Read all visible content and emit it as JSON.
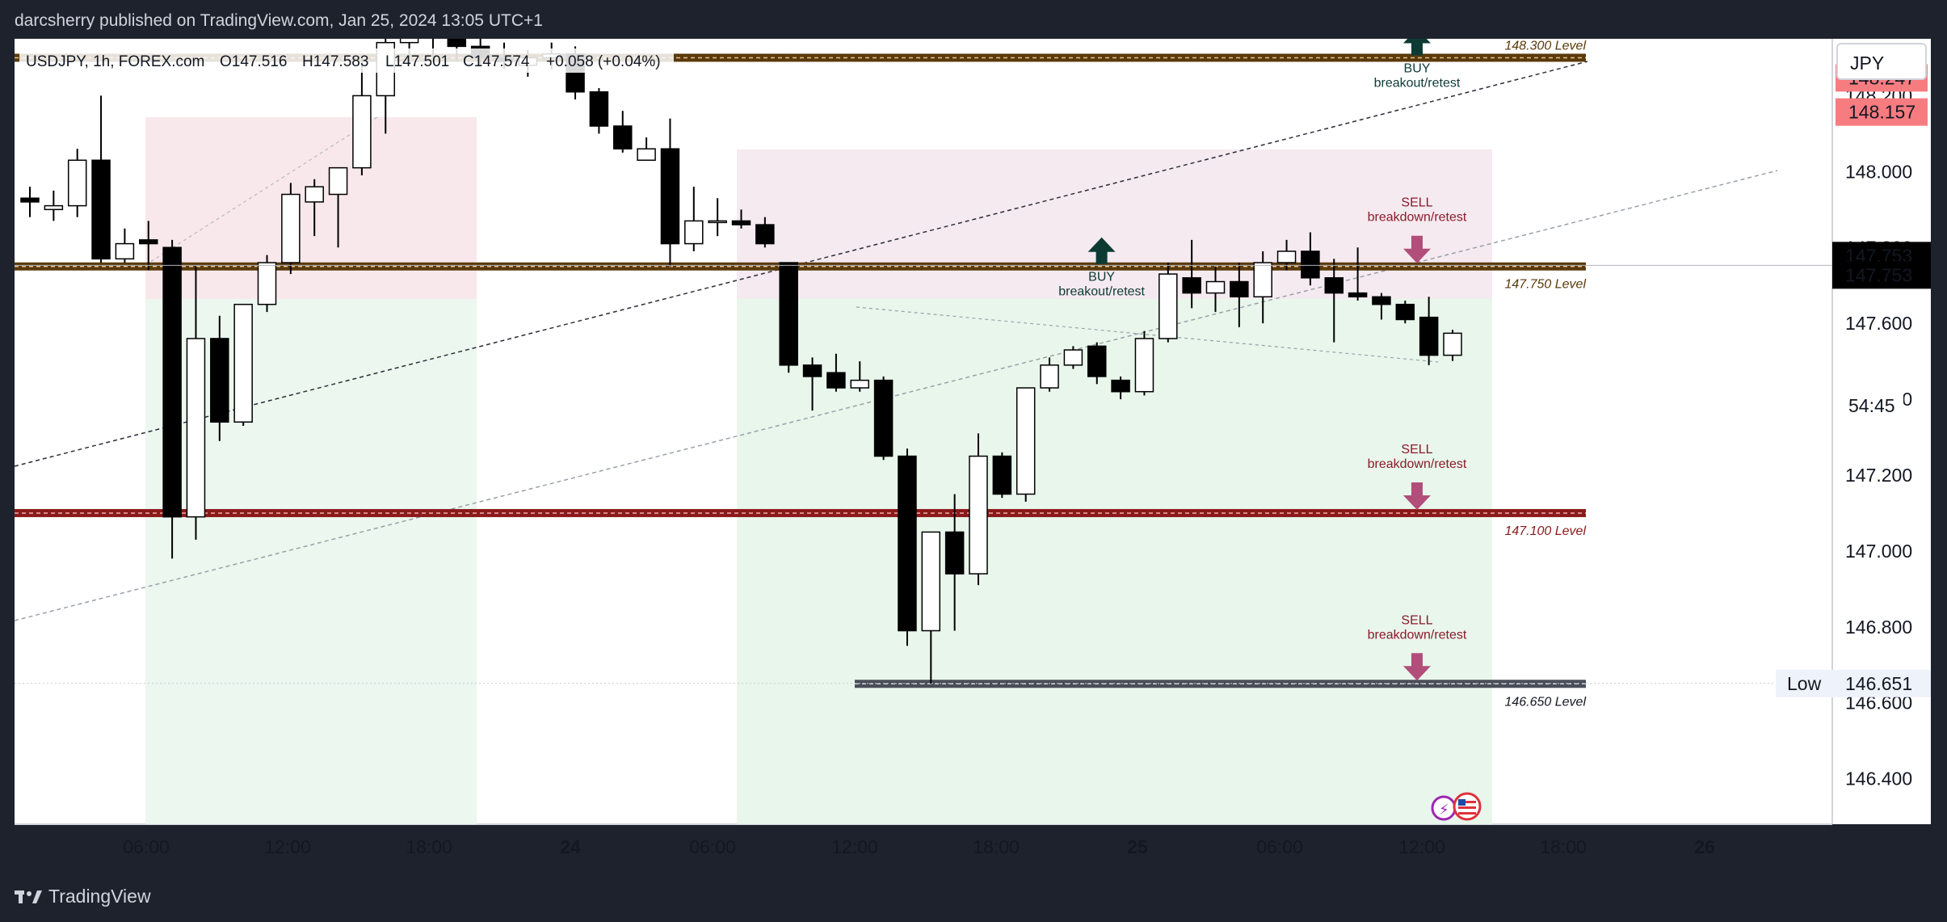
{
  "header": {
    "publisher_line": "darcsherry published on TradingView.com, Jan 25, 2024 13:05 UTC+1"
  },
  "footer": {
    "brand": "TradingView"
  },
  "chart_info": {
    "symbol": "USDJPY, 1h, FOREX.com",
    "open": "O147.516",
    "high": "H147.583",
    "low": "L147.501",
    "close": "C147.574",
    "change": "+0.058 (+0.04%)"
  },
  "currency_button": "JPY",
  "colors": {
    "bull_body": "#ffffff",
    "bear_body": "#000000",
    "zone_red": "#f7e6ea",
    "zone_green": "#e7f5ea",
    "level_brown": "#5a3a0c",
    "level_red": "#8b1a1a",
    "level_gray": "#4a4e58",
    "buy_arrow": "#0d3b34",
    "sell_arrow": "#b14e7a"
  },
  "chart_data": {
    "type": "candlestick",
    "title": "USDJPY, 1h, FOREX.com",
    "ylim": [
      146.28,
      148.35
    ],
    "y_ticks": [
      "146.400",
      "146.600",
      "146.800",
      "147.000",
      "147.200",
      "147.400",
      "147.600",
      "147.800",
      "148.000",
      "148.200"
    ],
    "x_ticks": [
      "06:00",
      "12:00",
      "18:00",
      "24",
      "06:00",
      "12:00",
      "18:00",
      "25",
      "06:00",
      "12:00",
      "18:00",
      "26"
    ],
    "price_labels": [
      {
        "text": "148.247",
        "value": 148.247,
        "style": "alert"
      },
      {
        "text": "148.157",
        "value": 148.157,
        "style": "alert"
      },
      {
        "text": "147.753",
        "value": 147.753,
        "style": "last"
      },
      {
        "text": "147.753",
        "value": 147.753,
        "style": "last"
      },
      {
        "text": "54:45",
        "value": 147.574,
        "style": "countdown"
      },
      {
        "text": "146.651",
        "value": 146.651,
        "style": "low",
        "tag": "Low"
      }
    ],
    "candles": [
      {
        "t": "Jan 23 01:00",
        "o": 147.93,
        "h": 147.96,
        "l": 147.88,
        "c": 147.92
      },
      {
        "t": "Jan 23 02:00",
        "o": 147.9,
        "h": 147.95,
        "l": 147.87,
        "c": 147.91
      },
      {
        "t": "Jan 23 03:00",
        "o": 147.91,
        "h": 148.06,
        "l": 147.88,
        "c": 148.03
      },
      {
        "t": "Jan 23 04:00",
        "o": 148.03,
        "h": 148.2,
        "l": 147.76,
        "c": 147.77
      },
      {
        "t": "Jan 23 05:00",
        "o": 147.77,
        "h": 147.85,
        "l": 147.76,
        "c": 147.81
      },
      {
        "t": "Jan 23 06:00",
        "o": 147.82,
        "h": 147.87,
        "l": 147.74,
        "c": 147.81
      },
      {
        "t": "Jan 23 07:00",
        "o": 147.8,
        "h": 147.82,
        "l": 146.98,
        "c": 147.09
      },
      {
        "t": "Jan 23 08:00",
        "o": 147.09,
        "h": 147.75,
        "l": 147.03,
        "c": 147.56
      },
      {
        "t": "Jan 23 09:00",
        "o": 147.56,
        "h": 147.62,
        "l": 147.29,
        "c": 147.34
      },
      {
        "t": "Jan 23 10:00",
        "o": 147.34,
        "h": 147.65,
        "l": 147.33,
        "c": 147.65
      },
      {
        "t": "Jan 23 11:00",
        "o": 147.65,
        "h": 147.78,
        "l": 147.63,
        "c": 147.76
      },
      {
        "t": "Jan 23 12:00",
        "o": 147.76,
        "h": 147.97,
        "l": 147.73,
        "c": 147.94
      },
      {
        "t": "Jan 23 13:00",
        "o": 147.92,
        "h": 147.98,
        "l": 147.83,
        "c": 147.96
      },
      {
        "t": "Jan 23 14:00",
        "o": 147.94,
        "h": 148.0,
        "l": 147.8,
        "c": 148.01
      },
      {
        "t": "Jan 23 15:00",
        "o": 148.01,
        "h": 148.3,
        "l": 147.99,
        "c": 148.2
      },
      {
        "t": "Jan 23 16:00",
        "o": 148.2,
        "h": 148.37,
        "l": 148.1,
        "c": 148.34
      },
      {
        "t": "Jan 23 17:00",
        "o": 148.34,
        "h": 148.38,
        "l": 148.28,
        "c": 148.36
      },
      {
        "t": "Jan 23 18:00",
        "o": 148.36,
        "h": 148.4,
        "l": 148.3,
        "c": 148.38
      },
      {
        "t": "Jan 23 19:00",
        "o": 148.38,
        "h": 148.41,
        "l": 148.29,
        "c": 148.33
      },
      {
        "t": "Jan 23 20:00",
        "o": 148.33,
        "h": 148.36,
        "l": 148.28,
        "c": 148.3
      },
      {
        "t": "Jan 23 21:00",
        "o": 148.3,
        "h": 148.34,
        "l": 148.27,
        "c": 148.29
      },
      {
        "t": "Jan 23 22:00",
        "o": 148.28,
        "h": 148.32,
        "l": 148.25,
        "c": 148.3
      },
      {
        "t": "Jan 23 23:00",
        "o": 148.3,
        "h": 148.34,
        "l": 148.27,
        "c": 148.31
      },
      {
        "t": "Jan 24 00:00",
        "o": 148.31,
        "h": 148.33,
        "l": 148.19,
        "c": 148.21
      },
      {
        "t": "Jan 24 01:00",
        "o": 148.21,
        "h": 148.22,
        "l": 148.1,
        "c": 148.12
      },
      {
        "t": "Jan 24 02:00",
        "o": 148.12,
        "h": 148.16,
        "l": 148.05,
        "c": 148.06
      },
      {
        "t": "Jan 24 03:00",
        "o": 148.03,
        "h": 148.09,
        "l": 148.03,
        "c": 148.06
      },
      {
        "t": "Jan 24 04:00",
        "o": 148.06,
        "h": 148.14,
        "l": 147.75,
        "c": 147.81
      },
      {
        "t": "Jan 24 05:00",
        "o": 147.81,
        "h": 147.96,
        "l": 147.79,
        "c": 147.87
      },
      {
        "t": "Jan 24 06:00",
        "o": 147.87,
        "h": 147.93,
        "l": 147.83,
        "c": 147.87
      },
      {
        "t": "Jan 24 07:00",
        "o": 147.87,
        "h": 147.9,
        "l": 147.85,
        "c": 147.86
      },
      {
        "t": "Jan 24 08:00",
        "o": 147.86,
        "h": 147.88,
        "l": 147.8,
        "c": 147.81
      },
      {
        "t": "Jan 24 09:00",
        "o": 147.76,
        "h": 147.76,
        "l": 147.47,
        "c": 147.49
      },
      {
        "t": "Jan 24 10:00",
        "o": 147.49,
        "h": 147.51,
        "l": 147.37,
        "c": 147.46
      },
      {
        "t": "Jan 24 11:00",
        "o": 147.47,
        "h": 147.52,
        "l": 147.42,
        "c": 147.43
      },
      {
        "t": "Jan 24 12:00",
        "o": 147.43,
        "h": 147.5,
        "l": 147.42,
        "c": 147.45
      },
      {
        "t": "Jan 24 13:00",
        "o": 147.45,
        "h": 147.46,
        "l": 147.24,
        "c": 147.25
      },
      {
        "t": "Jan 24 14:00",
        "o": 147.25,
        "h": 147.27,
        "l": 146.75,
        "c": 146.79
      },
      {
        "t": "Jan 24 15:00",
        "o": 146.79,
        "h": 147.04,
        "l": 146.65,
        "c": 147.05
      },
      {
        "t": "Jan 24 16:00",
        "o": 147.05,
        "h": 147.15,
        "l": 146.79,
        "c": 146.94
      },
      {
        "t": "Jan 24 17:00",
        "o": 146.94,
        "h": 147.31,
        "l": 146.91,
        "c": 147.25
      },
      {
        "t": "Jan 24 18:00",
        "o": 147.25,
        "h": 147.26,
        "l": 147.14,
        "c": 147.15
      },
      {
        "t": "Jan 24 19:00",
        "o": 147.15,
        "h": 147.43,
        "l": 147.13,
        "c": 147.43
      },
      {
        "t": "Jan 24 20:00",
        "o": 147.43,
        "h": 147.51,
        "l": 147.42,
        "c": 147.49
      },
      {
        "t": "Jan 24 21:00",
        "o": 147.49,
        "h": 147.54,
        "l": 147.48,
        "c": 147.53
      },
      {
        "t": "Jan 24 22:00",
        "o": 147.54,
        "h": 147.55,
        "l": 147.44,
        "c": 147.46
      },
      {
        "t": "Jan 24 23:00",
        "o": 147.45,
        "h": 147.46,
        "l": 147.4,
        "c": 147.42
      },
      {
        "t": "Jan 25 00:00",
        "o": 147.42,
        "h": 147.58,
        "l": 147.41,
        "c": 147.56
      },
      {
        "t": "Jan 25 01:00",
        "o": 147.56,
        "h": 147.76,
        "l": 147.55,
        "c": 147.73
      },
      {
        "t": "Jan 25 02:00",
        "o": 147.72,
        "h": 147.82,
        "l": 147.64,
        "c": 147.68
      },
      {
        "t": "Jan 25 03:00",
        "o": 147.68,
        "h": 147.75,
        "l": 147.63,
        "c": 147.71
      },
      {
        "t": "Jan 25 04:00",
        "o": 147.71,
        "h": 147.76,
        "l": 147.59,
        "c": 147.67
      },
      {
        "t": "Jan 25 05:00",
        "o": 147.67,
        "h": 147.79,
        "l": 147.6,
        "c": 147.76
      },
      {
        "t": "Jan 25 06:00",
        "o": 147.76,
        "h": 147.82,
        "l": 147.74,
        "c": 147.79
      },
      {
        "t": "Jan 25 07:00",
        "o": 147.79,
        "h": 147.84,
        "l": 147.7,
        "c": 147.72
      },
      {
        "t": "Jan 25 08:00",
        "o": 147.72,
        "h": 147.77,
        "l": 147.55,
        "c": 147.68
      },
      {
        "t": "Jan 25 09:00",
        "o": 147.68,
        "h": 147.8,
        "l": 147.66,
        "c": 147.67
      },
      {
        "t": "Jan 25 10:00",
        "o": 147.67,
        "h": 147.68,
        "l": 147.61,
        "c": 147.65
      },
      {
        "t": "Jan 25 11:00",
        "o": 147.65,
        "h": 147.66,
        "l": 147.6,
        "c": 147.61
      },
      {
        "t": "Jan 25 12:00",
        "o": 147.616,
        "h": 147.67,
        "l": 147.49,
        "c": 147.516
      },
      {
        "t": "Jan 25 13:00",
        "o": 147.516,
        "h": 147.583,
        "l": 147.501,
        "c": 147.574
      }
    ],
    "levels": [
      {
        "price": 148.3,
        "label": "148.300 Level",
        "style": "brown"
      },
      {
        "price": 147.75,
        "label": "147.750 Level",
        "style": "brown"
      },
      {
        "price": 147.1,
        "label": "147.100 Level",
        "style": "red"
      },
      {
        "price": 146.65,
        "label": "146.650 Level",
        "style": "gray"
      }
    ],
    "signals": [
      {
        "type": "BUY",
        "lines": [
          "BUY",
          "breakout/retest"
        ],
        "price": 148.3,
        "time_index": 58.5
      },
      {
        "type": "BUY",
        "lines": [
          "BUY",
          "breakout/retest"
        ],
        "price": 147.75,
        "time_index": 45.2
      },
      {
        "type": "SELL",
        "lines": [
          "SELL",
          "breakdown/retest"
        ],
        "price": 147.75,
        "time_index": 58.5
      },
      {
        "type": "SELL",
        "lines": [
          "SELL",
          "breakdown/retest"
        ],
        "price": 147.1,
        "time_index": 58.5
      },
      {
        "type": "SELL",
        "lines": [
          "SELL",
          "breakdown/retest"
        ],
        "price": 146.65,
        "time_index": 58.5
      }
    ]
  }
}
